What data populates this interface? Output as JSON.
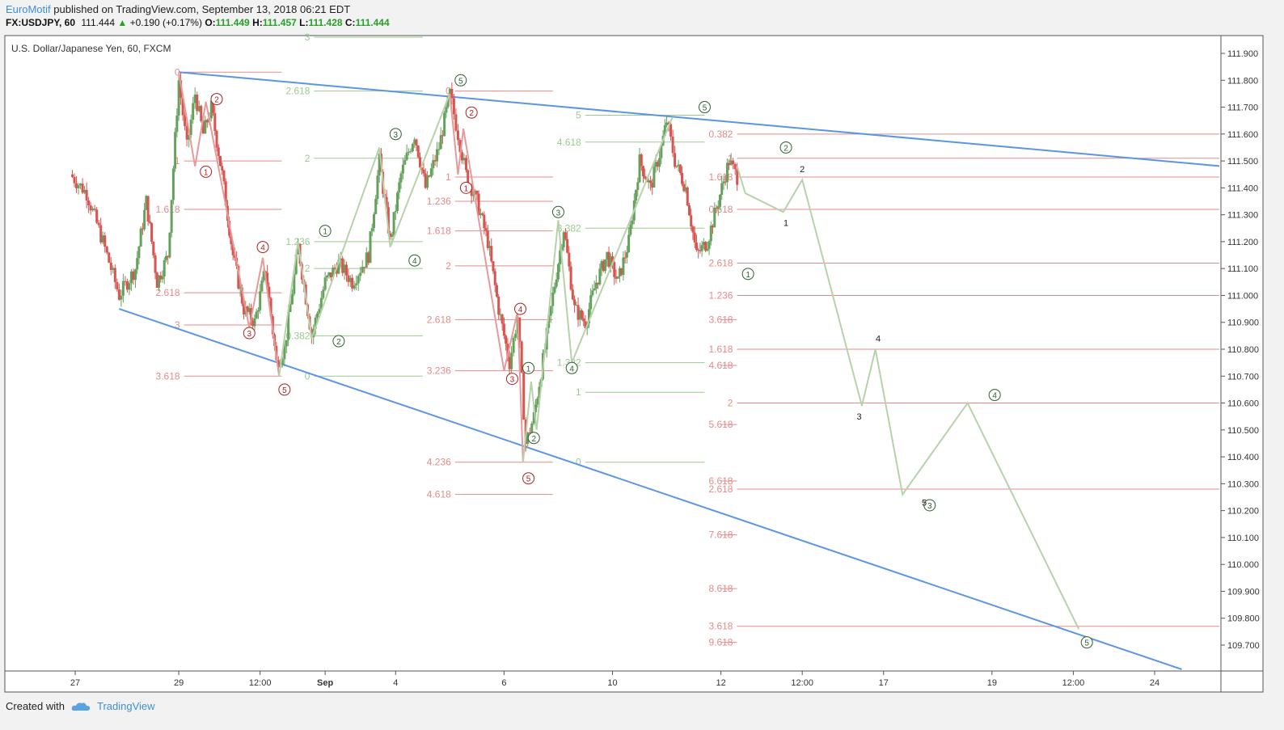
{
  "header": {
    "author": "EuroMotif",
    "published": "published on TradingView.com, September 13, 2018 06:21 EDT",
    "symbol": "FX:USDJPY, 60",
    "last": "111.444",
    "change_arrow": "▲",
    "change": "+0.190 (+0.17%)",
    "o_label": "O:",
    "o": "111.449",
    "h_label": "H:",
    "h": "111.457",
    "l_label": "L:",
    "l": "111.428",
    "c_label": "C:",
    "c": "111.444"
  },
  "footer": {
    "created": "Created with",
    "brand": "TradingView",
    "logo_icon": "tradingview-cloud-icon"
  },
  "colors": {
    "bull": "#65a15d",
    "bear": "#d9534f",
    "fib_red": "#e58a8a",
    "fib_green": "#9cc98f",
    "trend": "#5a95e6",
    "wave_red": "#b02020",
    "wave_green": "#2f5f2f",
    "projection": "#b7d2aa"
  },
  "chart_data": {
    "type": "candlestick",
    "title": "U.S. Dollar/Japanese Yen, 60, FXCM",
    "ylim": [
      109.6,
      111.95
    ],
    "y_ticks": [
      "111.900",
      "111.800",
      "111.700",
      "111.600",
      "111.500",
      "111.400",
      "111.300",
      "111.200",
      "111.100",
      "111.000",
      "110.900",
      "110.800",
      "110.700",
      "110.600",
      "110.500",
      "110.400",
      "110.300",
      "110.200",
      "110.100",
      "110.000",
      "109.900",
      "109.800",
      "109.700"
    ],
    "x_ticks": [
      {
        "label": "27",
        "x": 0.09
      },
      {
        "label": "29",
        "x": 2.0
      },
      {
        "label": "12:00",
        "x": 3.5
      },
      {
        "label": "Sep",
        "x": 4.7
      },
      {
        "label": "4",
        "x": 6.0
      },
      {
        "label": "6",
        "x": 8.0
      },
      {
        "label": "10",
        "x": 10.0
      },
      {
        "label": "12",
        "x": 12.0
      },
      {
        "label": "12:00",
        "x": 13.5
      },
      {
        "label": "17",
        "x": 15.0
      },
      {
        "label": "19",
        "x": 17.0
      },
      {
        "label": "12:00",
        "x": 18.5
      },
      {
        "label": "24",
        "x": 20.0
      }
    ],
    "price_path": [
      {
        "x": 0.0,
        "y": 111.45
      },
      {
        "x": 0.3,
        "y": 111.38
      },
      {
        "x": 0.6,
        "y": 111.2
      },
      {
        "x": 0.9,
        "y": 111.0
      },
      {
        "x": 1.2,
        "y": 111.1
      },
      {
        "x": 1.4,
        "y": 111.35
      },
      {
        "x": 1.6,
        "y": 111.05
      },
      {
        "x": 1.8,
        "y": 111.15
      },
      {
        "x": 2.0,
        "y": 111.8
      },
      {
        "x": 2.15,
        "y": 111.55
      },
      {
        "x": 2.3,
        "y": 111.75
      },
      {
        "x": 2.45,
        "y": 111.6
      },
      {
        "x": 2.6,
        "y": 111.7
      },
      {
        "x": 2.8,
        "y": 111.45
      },
      {
        "x": 3.0,
        "y": 111.15
      },
      {
        "x": 3.2,
        "y": 110.95
      },
      {
        "x": 3.4,
        "y": 110.9
      },
      {
        "x": 3.6,
        "y": 111.1
      },
      {
        "x": 3.8,
        "y": 110.75
      },
      {
        "x": 3.95,
        "y": 110.8
      },
      {
        "x": 4.2,
        "y": 111.18
      },
      {
        "x": 4.45,
        "y": 110.85
      },
      {
        "x": 4.7,
        "y": 111.05
      },
      {
        "x": 4.95,
        "y": 111.12
      },
      {
        "x": 5.2,
        "y": 111.05
      },
      {
        "x": 5.5,
        "y": 111.15
      },
      {
        "x": 5.7,
        "y": 111.5
      },
      {
        "x": 5.9,
        "y": 111.2
      },
      {
        "x": 6.1,
        "y": 111.45
      },
      {
        "x": 6.35,
        "y": 111.6
      },
      {
        "x": 6.55,
        "y": 111.4
      },
      {
        "x": 6.8,
        "y": 111.55
      },
      {
        "x": 7.0,
        "y": 111.75
      },
      {
        "x": 7.15,
        "y": 111.6
      },
      {
        "x": 7.3,
        "y": 111.45
      },
      {
        "x": 7.5,
        "y": 111.35
      },
      {
        "x": 7.7,
        "y": 111.2
      },
      {
        "x": 7.9,
        "y": 110.95
      },
      {
        "x": 8.1,
        "y": 110.75
      },
      {
        "x": 8.25,
        "y": 110.92
      },
      {
        "x": 8.4,
        "y": 110.45
      },
      {
        "x": 8.55,
        "y": 110.55
      },
      {
        "x": 8.75,
        "y": 110.8
      },
      {
        "x": 8.9,
        "y": 111.0
      },
      {
        "x": 9.1,
        "y": 111.25
      },
      {
        "x": 9.3,
        "y": 110.95
      },
      {
        "x": 9.5,
        "y": 110.9
      },
      {
        "x": 9.7,
        "y": 111.05
      },
      {
        "x": 9.9,
        "y": 111.15
      },
      {
        "x": 10.1,
        "y": 111.05
      },
      {
        "x": 10.3,
        "y": 111.2
      },
      {
        "x": 10.5,
        "y": 111.5
      },
      {
        "x": 10.7,
        "y": 111.4
      },
      {
        "x": 10.9,
        "y": 111.55
      },
      {
        "x": 11.0,
        "y": 111.65
      },
      {
        "x": 11.15,
        "y": 111.5
      },
      {
        "x": 11.35,
        "y": 111.4
      },
      {
        "x": 11.55,
        "y": 111.15
      },
      {
        "x": 11.75,
        "y": 111.2
      },
      {
        "x": 11.95,
        "y": 111.35
      },
      {
        "x": 12.15,
        "y": 111.5
      },
      {
        "x": 12.3,
        "y": 111.44
      }
    ],
    "trendlines": [
      {
        "name": "upper",
        "x1": 2.0,
        "y1": 111.83,
        "x2": 21.8,
        "y2": 111.47
      },
      {
        "name": "lower",
        "x1": 0.9,
        "y1": 110.95,
        "x2": 20.5,
        "y2": 109.61
      }
    ],
    "fib_levels": [
      {
        "label": "0",
        "price": 111.83,
        "x0": 1.5,
        "x1": 3.9,
        "color": "red"
      },
      {
        "label": "1",
        "price": 111.5,
        "x0": 1.5,
        "x1": 3.9,
        "color": "red"
      },
      {
        "label": "1.618",
        "price": 111.32,
        "x0": 1.5,
        "x1": 3.9,
        "color": "red"
      },
      {
        "label": "2.618",
        "price": 111.01,
        "x0": 1.5,
        "x1": 3.9,
        "color": "red"
      },
      {
        "label": "3",
        "price": 110.89,
        "x0": 1.5,
        "x1": 3.9,
        "color": "red"
      },
      {
        "label": "3.618",
        "price": 110.7,
        "x0": 1.5,
        "x1": 3.9,
        "color": "red"
      },
      {
        "label": "3",
        "price": 111.96,
        "x0": 3.9,
        "x1": 6.5,
        "color": "green"
      },
      {
        "label": "2.618",
        "price": 111.76,
        "x0": 3.9,
        "x1": 6.5,
        "color": "green"
      },
      {
        "label": "2",
        "price": 111.51,
        "x0": 3.9,
        "x1": 6.5,
        "color": "green"
      },
      {
        "label": "1.236",
        "price": 111.2,
        "x0": 3.9,
        "x1": 6.5,
        "color": "green"
      },
      {
        "label": "2",
        "price": 111.1,
        "x0": 3.9,
        "x1": 6.5,
        "color": "green"
      },
      {
        "label": "0.382",
        "price": 110.85,
        "x0": 3.9,
        "x1": 6.5,
        "color": "green"
      },
      {
        "label": "0",
        "price": 110.7,
        "x0": 3.9,
        "x1": 6.5,
        "color": "green"
      },
      {
        "label": "0",
        "price": 111.76,
        "x0": 6.5,
        "x1": 8.9,
        "color": "red"
      },
      {
        "label": "1",
        "price": 111.44,
        "x0": 6.5,
        "x1": 8.9,
        "color": "red"
      },
      {
        "label": "1.236",
        "price": 111.35,
        "x0": 6.5,
        "x1": 8.9,
        "color": "red"
      },
      {
        "label": "1.618",
        "price": 111.24,
        "x0": 6.5,
        "x1": 8.9,
        "color": "red"
      },
      {
        "label": "2",
        "price": 111.11,
        "x0": 6.5,
        "x1": 8.9,
        "color": "red"
      },
      {
        "label": "2.618",
        "price": 110.91,
        "x0": 6.5,
        "x1": 8.9,
        "color": "red"
      },
      {
        "label": "3.236",
        "price": 110.72,
        "x0": 6.5,
        "x1": 8.9,
        "color": "red"
      },
      {
        "label": "4.236",
        "price": 110.38,
        "x0": 6.5,
        "x1": 8.9,
        "color": "red"
      },
      {
        "label": "4.618",
        "price": 110.26,
        "x0": 6.5,
        "x1": 8.9,
        "color": "red"
      },
      {
        "label": "5",
        "price": 111.67,
        "x0": 8.9,
        "x1": 11.7,
        "color": "green"
      },
      {
        "label": "4.618",
        "price": 111.57,
        "x0": 8.9,
        "x1": 11.7,
        "color": "green"
      },
      {
        "label": "3.382",
        "price": 111.25,
        "x0": 8.9,
        "x1": 11.7,
        "color": "green"
      },
      {
        "label": "1.382",
        "price": 110.75,
        "x0": 8.9,
        "x1": 11.7,
        "color": "green"
      },
      {
        "label": "1",
        "price": 110.64,
        "x0": 8.9,
        "x1": 11.7,
        "color": "green"
      },
      {
        "label": "0",
        "price": 110.38,
        "x0": 8.9,
        "x1": 11.7,
        "color": "green"
      },
      {
        "label": "0.382",
        "price": 111.6,
        "x0": 11.7,
        "x1": 22.0,
        "color": "red"
      },
      {
        "label": "1",
        "price": 111.51,
        "x0": 11.7,
        "x1": 22.0,
        "color": "red"
      },
      {
        "label": "1.618",
        "price": 111.44,
        "x0": 11.7,
        "x1": 22.0,
        "color": "red"
      },
      {
        "label": "0.618",
        "price": 111.32,
        "x0": 11.7,
        "x1": 22.0,
        "color": "red"
      },
      {
        "label": "2.618",
        "price": 111.12,
        "x0": 11.7,
        "x1": 22.0,
        "color": "red"
      },
      {
        "label": "1.236",
        "price": 111.0,
        "x0": 11.7,
        "x1": 22.0,
        "color": "red"
      },
      {
        "label": "3.618",
        "price": 110.91,
        "x0": 11.7,
        "x1": 12.0,
        "color": "red"
      },
      {
        "label": "1.618",
        "price": 110.8,
        "x0": 11.7,
        "x1": 22.0,
        "color": "red"
      },
      {
        "label": "4.618",
        "price": 110.74,
        "x0": 11.7,
        "x1": 12.0,
        "color": "red"
      },
      {
        "label": "2",
        "price": 110.6,
        "x0": 11.7,
        "x1": 22.0,
        "color": "red"
      },
      {
        "label": "5.618",
        "price": 110.52,
        "x0": 11.7,
        "x1": 12.0,
        "color": "red"
      },
      {
        "label": "6.618",
        "price": 110.31,
        "x0": 11.7,
        "x1": 12.0,
        "color": "red"
      },
      {
        "label": "2.618",
        "price": 110.28,
        "x0": 11.7,
        "x1": 22.0,
        "color": "red"
      },
      {
        "label": "7.618",
        "price": 110.11,
        "x0": 11.7,
        "x1": 12.0,
        "color": "red"
      },
      {
        "label": "8.618",
        "price": 109.91,
        "x0": 11.7,
        "x1": 12.0,
        "color": "red"
      },
      {
        "label": "3.618",
        "price": 109.77,
        "x0": 11.7,
        "x1": 22.0,
        "color": "red"
      },
      {
        "label": "9.618",
        "price": 109.71,
        "x0": 11.7,
        "x1": 12.0,
        "color": "red"
      }
    ],
    "wave_labels": [
      {
        "label": "1",
        "x": 2.5,
        "y": 111.46,
        "color": "red"
      },
      {
        "label": "2",
        "x": 2.7,
        "y": 111.73,
        "color": "red"
      },
      {
        "label": "3",
        "x": 3.3,
        "y": 110.86,
        "color": "red"
      },
      {
        "label": "4",
        "x": 3.55,
        "y": 111.18,
        "color": "red"
      },
      {
        "label": "5",
        "x": 3.95,
        "y": 110.65,
        "color": "red"
      },
      {
        "label": "1",
        "x": 4.7,
        "y": 111.24,
        "color": "green"
      },
      {
        "label": "2",
        "x": 4.95,
        "y": 110.83,
        "color": "green"
      },
      {
        "label": "3",
        "x": 6.0,
        "y": 111.6,
        "color": "green"
      },
      {
        "label": "4",
        "x": 6.35,
        "y": 111.13,
        "color": "green"
      },
      {
        "label": "5",
        "x": 7.2,
        "y": 111.8,
        "color": "green"
      },
      {
        "label": "1",
        "x": 7.3,
        "y": 111.4,
        "color": "red"
      },
      {
        "label": "2",
        "x": 7.4,
        "y": 111.68,
        "color": "red"
      },
      {
        "label": "3",
        "x": 8.15,
        "y": 110.69,
        "color": "red"
      },
      {
        "label": "4",
        "x": 8.3,
        "y": 110.95,
        "color": "red"
      },
      {
        "label": "5",
        "x": 8.45,
        "y": 110.32,
        "color": "red"
      },
      {
        "label": "1",
        "x": 8.45,
        "y": 110.73,
        "color": "green"
      },
      {
        "label": "2",
        "x": 8.55,
        "y": 110.47,
        "color": "green"
      },
      {
        "label": "3",
        "x": 9.0,
        "y": 111.31,
        "color": "green"
      },
      {
        "label": "4",
        "x": 9.25,
        "y": 110.73,
        "color": "green"
      },
      {
        "label": "5",
        "x": 11.7,
        "y": 111.7,
        "color": "green"
      },
      {
        "label": "1",
        "x": 12.5,
        "y": 111.08,
        "color": "green"
      },
      {
        "label": "2",
        "x": 13.2,
        "y": 111.55,
        "color": "green"
      },
      {
        "label": "3",
        "x": 15.85,
        "y": 110.22,
        "color": "green"
      },
      {
        "label": "4",
        "x": 17.05,
        "y": 110.63,
        "color": "green"
      },
      {
        "label": "5",
        "x": 18.75,
        "y": 109.71,
        "color": "green"
      }
    ],
    "projection_labels": [
      {
        "label": "2",
        "x": 13.5,
        "y": 111.47
      },
      {
        "label": "1",
        "x": 13.2,
        "y": 111.27
      },
      {
        "label": "4",
        "x": 14.9,
        "y": 110.84
      },
      {
        "label": "3",
        "x": 14.55,
        "y": 110.55
      },
      {
        "label": "5",
        "x": 15.75,
        "y": 110.23
      }
    ],
    "projection_path": [
      {
        "x": 12.3,
        "y": 111.48
      },
      {
        "x": 12.45,
        "y": 111.38
      },
      {
        "x": 13.15,
        "y": 111.31
      },
      {
        "x": 13.5,
        "y": 111.43
      },
      {
        "x": 14.6,
        "y": 110.59
      },
      {
        "x": 14.85,
        "y": 110.8
      },
      {
        "x": 15.35,
        "y": 110.26
      },
      {
        "x": 16.55,
        "y": 110.6
      },
      {
        "x": 18.6,
        "y": 109.76
      }
    ],
    "wave_paths": [
      {
        "color": "red",
        "pts": [
          [
            2.0,
            111.83
          ],
          [
            2.3,
            111.48
          ],
          [
            2.5,
            111.72
          ],
          [
            3.3,
            110.88
          ],
          [
            3.55,
            111.14
          ],
          [
            3.85,
            110.7
          ]
        ]
      },
      {
        "color": "green",
        "pts": [
          [
            3.85,
            110.7
          ],
          [
            4.2,
            111.2
          ],
          [
            4.45,
            110.84
          ],
          [
            5.7,
            111.55
          ],
          [
            5.9,
            111.18
          ],
          [
            7.0,
            111.75
          ]
        ]
      },
      {
        "color": "red",
        "pts": [
          [
            7.0,
            111.75
          ],
          [
            7.15,
            111.45
          ],
          [
            7.25,
            111.62
          ],
          [
            8.0,
            110.72
          ],
          [
            8.25,
            110.94
          ],
          [
            8.35,
            110.38
          ]
        ]
      },
      {
        "color": "green",
        "pts": [
          [
            8.35,
            110.38
          ],
          [
            8.5,
            110.68
          ],
          [
            8.6,
            110.5
          ],
          [
            9.0,
            111.28
          ],
          [
            9.25,
            110.75
          ],
          [
            11.1,
            111.66
          ]
        ]
      }
    ]
  }
}
